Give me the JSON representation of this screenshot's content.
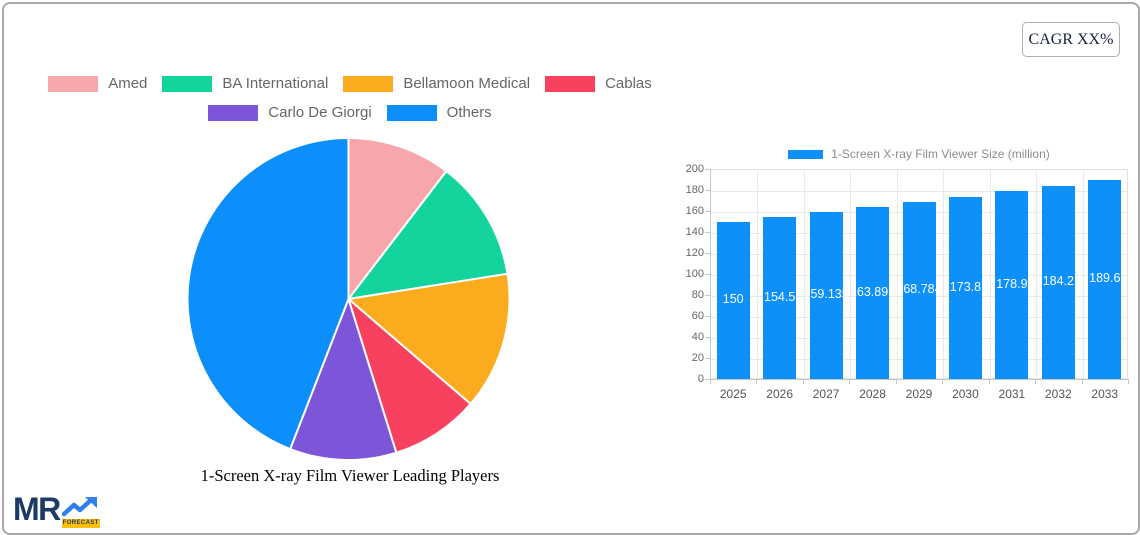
{
  "header": {
    "cagr_label": "CAGR XX%"
  },
  "logo": {
    "text": "MR",
    "badge": "FORECAST"
  },
  "chart_data": [
    {
      "type": "pie",
      "title": "1-Screen X-ray Film Viewer Leading Players",
      "legend_position": "top",
      "start_angle": "top, clockwise",
      "slices": [
        {
          "label": "Amed",
          "percent": 10.4,
          "color": "#f7a6ab"
        },
        {
          "label": "BA International",
          "percent": 12.1,
          "color": "#13d49c"
        },
        {
          "label": "Bellamoon Medical",
          "percent": 13.8,
          "color": "#fbab1e"
        },
        {
          "label": "Cablas",
          "percent": 8.9,
          "color": "#f8405f"
        },
        {
          "label": "Carlo De Giorgi",
          "percent": 10.7,
          "color": "#7d55d8"
        },
        {
          "label": "Others",
          "percent": 44.1,
          "color": "#0d8ffb"
        }
      ]
    },
    {
      "type": "bar",
      "legend_label": "1-Screen X-ray Film Viewer Size (million)",
      "legend_position": "top",
      "categories": [
        "2025",
        "2026",
        "2027",
        "2028",
        "2029",
        "2030",
        "2031",
        "2032",
        "2033"
      ],
      "values": [
        150,
        154.5,
        159.135,
        163.891,
        168.784,
        173.8,
        178.9,
        184.2,
        189.6
      ],
      "bar_labels": [
        "150",
        "154.5",
        "159.135",
        "163.891",
        "168.784",
        "173.8",
        "178.9",
        "184.2",
        "189.6"
      ],
      "ylim": [
        0,
        200
      ],
      "ytick_step": 20,
      "bar_color": "#0e90fb",
      "grid": true
    }
  ]
}
